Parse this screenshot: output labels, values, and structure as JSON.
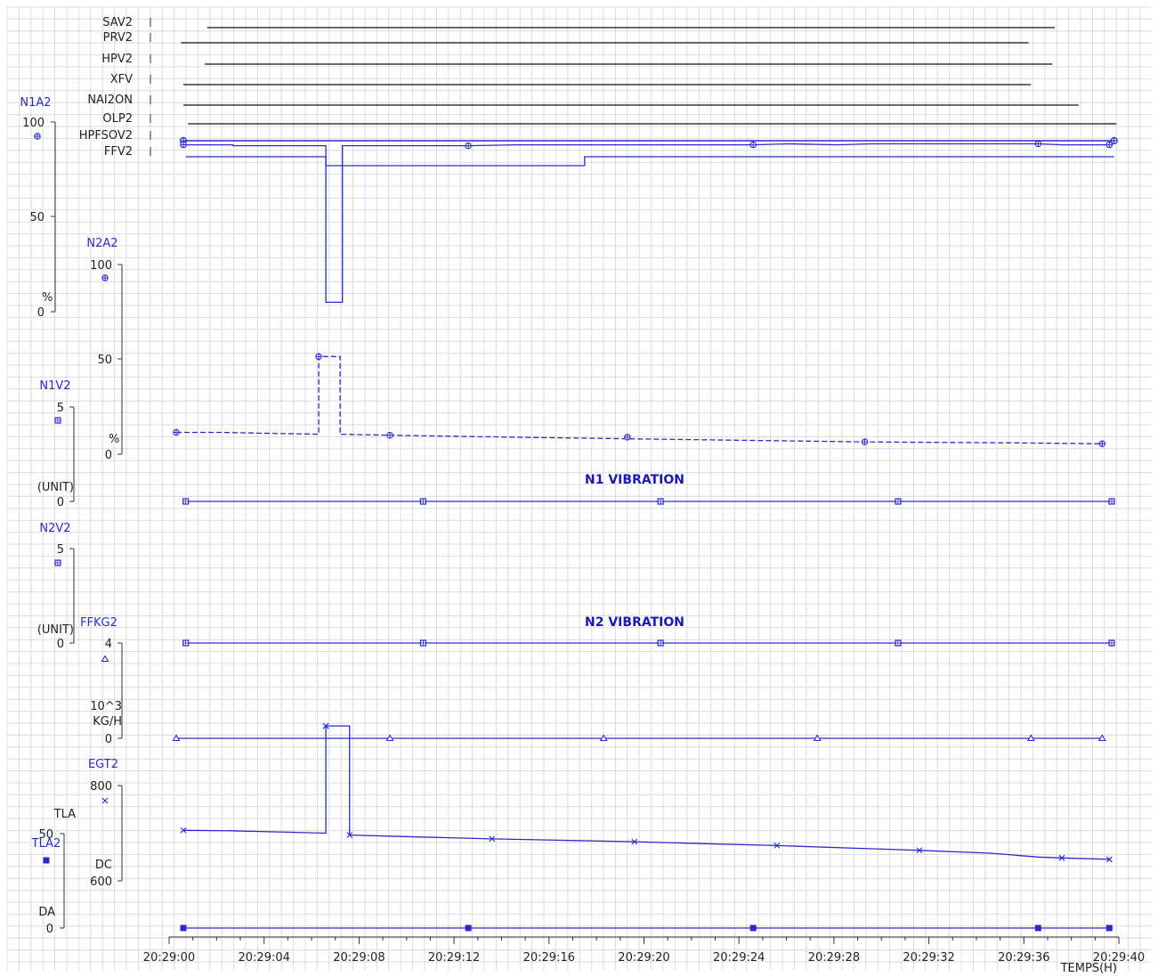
{
  "chart_data": {
    "type": "line",
    "x_axis": {
      "label": "TEMPS(H)",
      "ticks": [
        "20:29:00",
        "20:29:04",
        "20:29:08",
        "20:29:12",
        "20:29:16",
        "20:29:20",
        "20:29:24",
        "20:29:28",
        "20:29:32",
        "20:29:36",
        "20:29:40"
      ],
      "range_seconds": [
        0,
        40
      ]
    },
    "discrete_signals": [
      {
        "name": "SAV2",
        "start_s": 1.6,
        "end_s": 37.3
      },
      {
        "name": "PRV2",
        "start_s": 0.5,
        "end_s": 36.2
      },
      {
        "name": "HPV2",
        "start_s": 1.5,
        "end_s": 37.2
      },
      {
        "name": "XFV",
        "start_s": 0.6,
        "end_s": 36.3
      },
      {
        "name": "NAI2ON",
        "start_s": 0.6,
        "end_s": 38.3
      },
      {
        "name": "OLP2",
        "start_s": 0.8,
        "end_s": 39.9
      },
      {
        "name": "HPFSOV2",
        "start_s": 0.6,
        "end_s": 39.8,
        "marked": true
      },
      {
        "name": "FFV2",
        "start_s": 0.7,
        "end_s": 39.8,
        "low_from_s": 6.6,
        "low_to_s": 17.5
      }
    ],
    "series": [
      {
        "name": "N1A2",
        "unit": "%",
        "ylim": [
          0,
          100
        ],
        "axis_ticks": [
          "100",
          "50",
          "0"
        ],
        "color": "#2a2acc",
        "style": "solid",
        "marker": "circle-plus",
        "points": [
          [
            0.6,
            88
          ],
          [
            2.7,
            88
          ],
          [
            2.7,
            87.5
          ],
          [
            6.6,
            87.5
          ],
          [
            6.6,
            5
          ],
          [
            7.3,
            5
          ],
          [
            7.3,
            87.5
          ],
          [
            12.6,
            87.5
          ],
          [
            14.6,
            88
          ],
          [
            24.6,
            88
          ],
          [
            26.1,
            88.5
          ],
          [
            26.1,
            88.5
          ],
          [
            28.1,
            88
          ],
          [
            29.6,
            88.5
          ],
          [
            36.6,
            88.5
          ],
          [
            37.6,
            88
          ],
          [
            39.6,
            88
          ]
        ],
        "markers_s": [
          0.6,
          12.6,
          24.6,
          36.6,
          39.6
        ]
      },
      {
        "name": "N2A2",
        "unit": "%",
        "ylim": [
          0,
          100
        ],
        "axis_ticks": [
          "100",
          "50",
          "0"
        ],
        "color": "#2a2acc",
        "style": "dashed",
        "marker": "circle-plus",
        "points": [
          [
            0.3,
            11.5
          ],
          [
            2.2,
            11.5
          ],
          [
            6.3,
            10.5
          ],
          [
            6.3,
            10.5
          ],
          [
            6.3,
            51.5
          ],
          [
            7.2,
            51.5
          ],
          [
            7.2,
            10.5
          ],
          [
            9.3,
            10
          ],
          [
            14.3,
            9
          ],
          [
            20.3,
            8
          ],
          [
            29.3,
            6.5
          ],
          [
            35.3,
            6
          ],
          [
            39.3,
            5.5
          ]
        ],
        "markers_s": [
          0.3,
          6.3,
          9.3,
          19.3,
          29.3,
          39.3
        ]
      },
      {
        "name": "N1V2",
        "unit": "(UNIT)",
        "title": "N1 VIBRATION",
        "ylim": [
          0,
          5
        ],
        "axis_ticks": [
          "5",
          "0"
        ],
        "color": "#2a2acc",
        "style": "solid",
        "marker": "square",
        "points": [
          [
            0.7,
            0
          ],
          [
            39.7,
            0
          ]
        ],
        "markers_s": [
          0.7,
          10.7,
          20.7,
          30.7,
          39.7
        ]
      },
      {
        "name": "N2V2",
        "unit": "(UNIT)",
        "title": "N2 VIBRATION",
        "ylim": [
          0,
          5
        ],
        "axis_ticks": [
          "5",
          "0"
        ],
        "color": "#2a2acc",
        "style": "solid",
        "marker": "square",
        "points": [
          [
            0.7,
            0
          ],
          [
            39.7,
            0
          ]
        ],
        "markers_s": [
          0.7,
          10.7,
          20.7,
          30.7,
          39.7
        ]
      },
      {
        "name": "FFKG2",
        "unit": "10^3 KG/H",
        "ylim": [
          0,
          4
        ],
        "axis_ticks": [
          "4",
          "0"
        ],
        "color": "#2a2acc",
        "style": "solid",
        "marker": "triangle",
        "points": [
          [
            0.3,
            0
          ],
          [
            39.3,
            0
          ]
        ],
        "markers_s": [
          0.3,
          9.3,
          18.3,
          27.3,
          36.3,
          39.3
        ]
      },
      {
        "name": "EGT2",
        "unit": "DC",
        "ylim": [
          600,
          800
        ],
        "axis_ticks": [
          "800",
          "600"
        ],
        "color": "#2a2acc",
        "style": "solid",
        "marker": "x",
        "points": [
          [
            0.6,
            706
          ],
          [
            2.6,
            705
          ],
          [
            5.0,
            702
          ],
          [
            6.6,
            700
          ],
          [
            6.6,
            925
          ],
          [
            7.6,
            925
          ],
          [
            7.6,
            696
          ],
          [
            10.6,
            692
          ],
          [
            13.6,
            688
          ],
          [
            16.6,
            685
          ],
          [
            19.6,
            682
          ],
          [
            22.6,
            678
          ],
          [
            25.6,
            674
          ],
          [
            28.6,
            669
          ],
          [
            31.6,
            664
          ],
          [
            34.6,
            658
          ],
          [
            36.6,
            650
          ],
          [
            37.6,
            648
          ],
          [
            39.6,
            645
          ]
        ],
        "markers_s": [
          0.6,
          6.6,
          7.6,
          13.6,
          19.6,
          25.6,
          31.6,
          37.6,
          39.6
        ]
      },
      {
        "name": "TLA2",
        "unit": "DA",
        "axis_label": "TLA",
        "ylim": [
          0,
          50
        ],
        "axis_ticks": [
          "50",
          "0"
        ],
        "color": "#2a2acc",
        "style": "solid",
        "marker": "filled-square",
        "points": [
          [
            0.6,
            0
          ],
          [
            39.6,
            0
          ]
        ],
        "markers_s": [
          0.6,
          12.6,
          24.6,
          36.6,
          39.6
        ]
      }
    ]
  },
  "labels": {
    "n1a2_unit": "%",
    "n2a2_unit": "%",
    "vib_unit": "(UNIT)",
    "ffkg_unit_1": "10^3",
    "ffkg_unit_2": "KG/H",
    "egt_unit": "DC",
    "tla_title": "TLA",
    "tla_unit": "DA"
  }
}
